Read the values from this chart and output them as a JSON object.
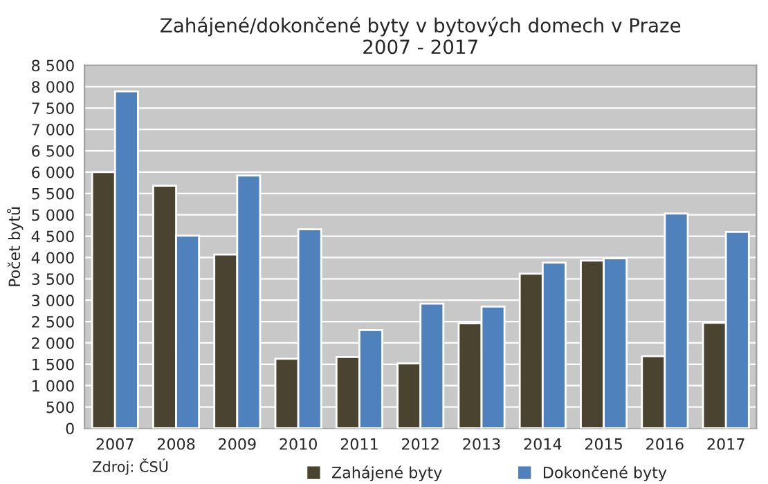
{
  "chart_data": {
    "type": "bar",
    "title": "Zahájené/dokončené byty v bytových domech v Praze\n2007 - 2017",
    "ylabel": "Počet bytů",
    "categories": [
      "2007",
      "2008",
      "2009",
      "2010",
      "2011",
      "2012",
      "2013",
      "2014",
      "2015",
      "2016",
      "2017"
    ],
    "series": [
      {
        "name": "Zahájené byty",
        "color": "#4a4330",
        "values": [
          6000,
          5680,
          4070,
          1630,
          1670,
          1520,
          2460,
          3620,
          3930,
          1690,
          2470
        ]
      },
      {
        "name": "Dokončené byty",
        "color": "#4f81bd",
        "values": [
          7890,
          4510,
          5920,
          4660,
          2300,
          2920,
          2850,
          3880,
          3980,
          5030,
          4600
        ]
      }
    ],
    "ylim": [
      0,
      8500
    ],
    "yticks": [
      0,
      500,
      {
        "value": 1000,
        "label": "1 000"
      },
      {
        "value": 1500,
        "label": "1 500"
      },
      {
        "value": 2000,
        "label": "2 000"
      },
      {
        "value": 2500,
        "label": "2 500"
      },
      {
        "value": 3000,
        "label": "3 000"
      },
      {
        "value": 3500,
        "label": "3 500"
      },
      {
        "value": 4000,
        "label": "4 000"
      },
      {
        "value": 4500,
        "label": "4 500"
      },
      {
        "value": 5000,
        "label": "5 000"
      },
      {
        "value": 5500,
        "label": "5 500"
      },
      {
        "value": 6000,
        "label": "6 000"
      },
      {
        "value": 6500,
        "label": "6 500"
      },
      {
        "value": 7000,
        "label": "7 000"
      },
      {
        "value": 7500,
        "label": "7 500"
      },
      {
        "value": 8000,
        "label": "8 000"
      },
      {
        "value": 8500,
        "label": "8 500"
      }
    ],
    "grid": "y",
    "legend": "bottom",
    "annotations": [
      "Zdroj: ČSÚ"
    ]
  }
}
